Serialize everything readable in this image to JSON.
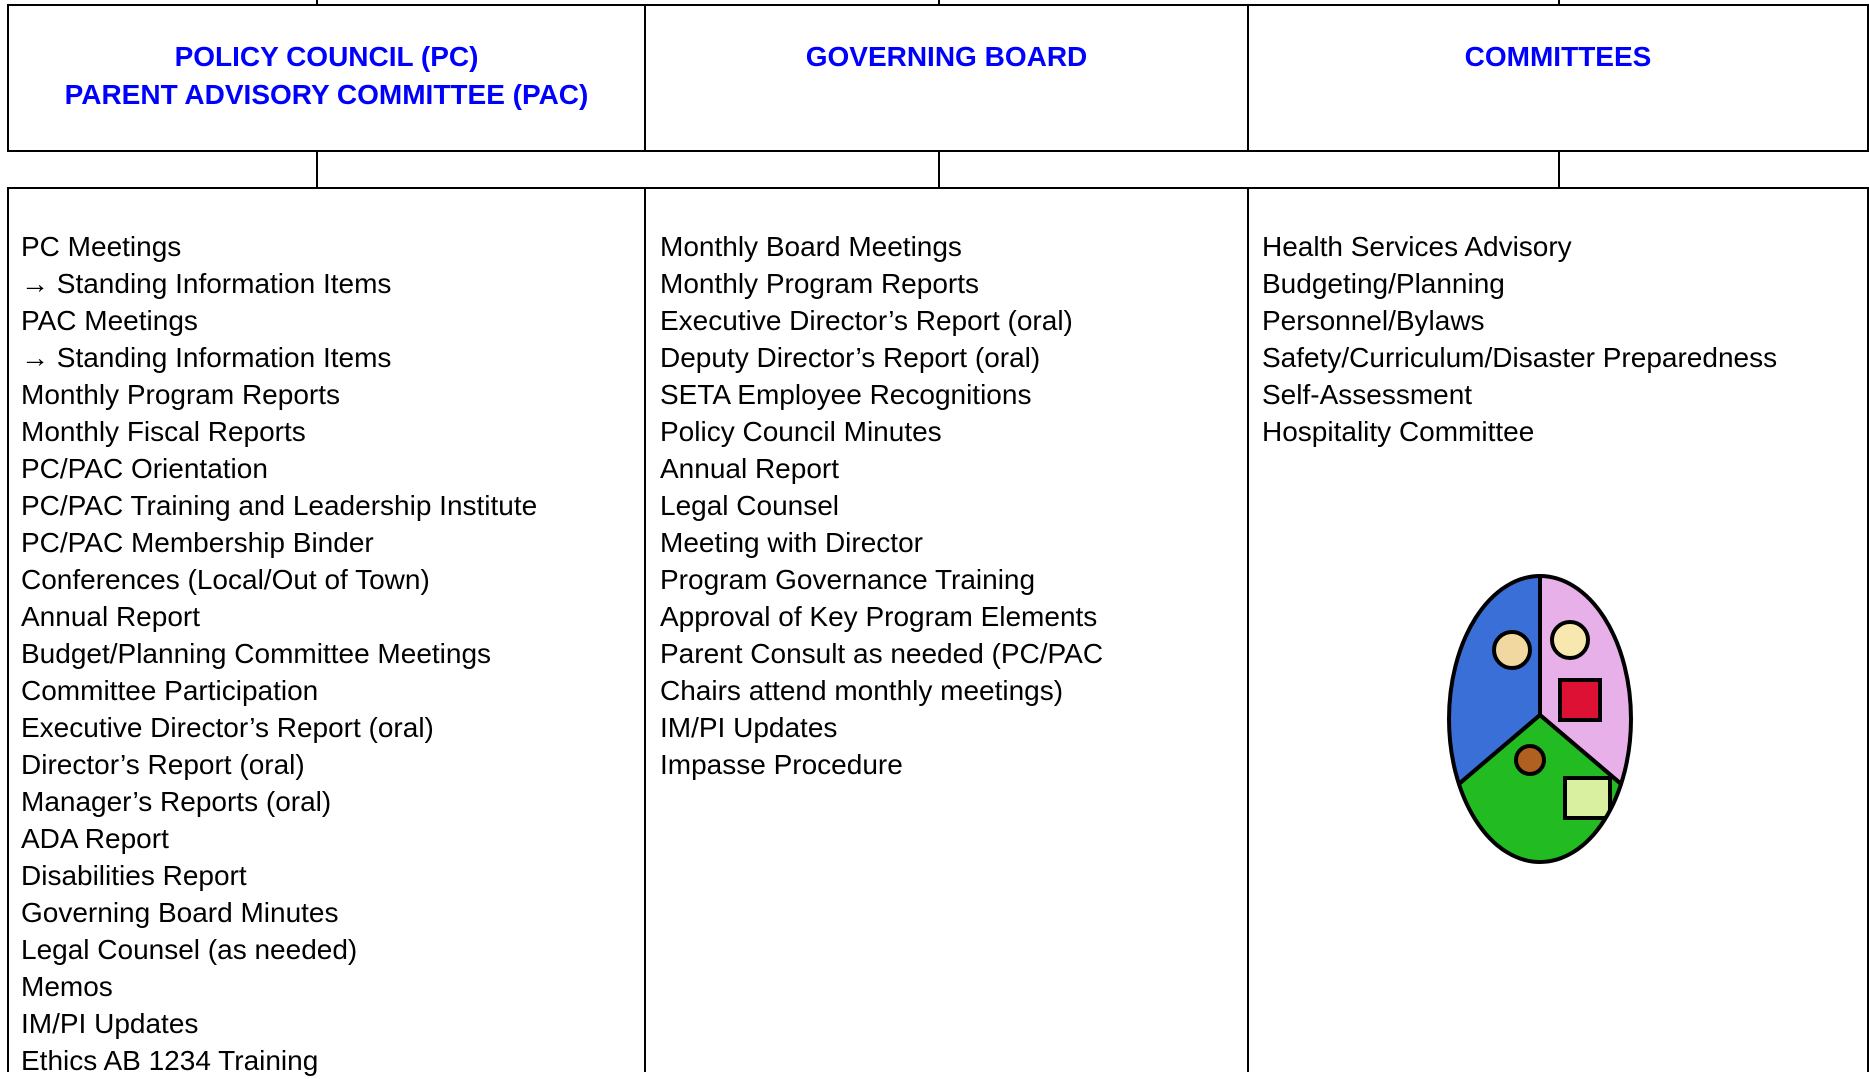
{
  "columns": [
    {
      "header": [
        "POLICY COUNCIL (PC)",
        "PARENT ADVISORY COMMITTEE (PAC)"
      ],
      "items": [
        "PC Meetings",
        "→ Standing Information Items",
        "PAC Meetings",
        "→ Standing Information Items",
        "Monthly Program Reports",
        "Monthly Fiscal Reports",
        "PC/PAC Orientation",
        "PC/PAC Training and Leadership Institute",
        "PC/PAC Membership Binder",
        "Conferences (Local/Out of Town)",
        "Annual Report",
        "Budget/Planning Committee Meetings",
        "Committee Participation",
        "Executive Director’s Report (oral)",
        "Director’s Report (oral)",
        "Manager’s Reports (oral)",
        "ADA Report",
        "Disabilities Report",
        "Governing Board Minutes",
        "Legal Counsel (as needed)",
        "Memos",
        "IM/PI Updates",
        "Ethics AB 1234 Training"
      ]
    },
    {
      "header": [
        "GOVERNING BOARD"
      ],
      "items": [
        "Monthly Board Meetings",
        "Monthly Program Reports",
        "Executive Director’s Report (oral)",
        "Deputy Director’s Report (oral)",
        "SETA Employee Recognitions",
        "Policy Council Minutes",
        "Annual Report",
        "Legal Counsel",
        "Meeting with Director",
        "Program Governance Training",
        "Approval of Key Program Elements",
        "Parent Consult as needed (PC/PAC",
        "Chairs attend monthly meetings)",
        "IM/PI Updates",
        "Impasse Procedure"
      ]
    },
    {
      "header": [
        "COMMITTEES"
      ],
      "items": [
        "Health Services Advisory",
        "Budgeting/Planning",
        "Personnel/Bylaws",
        "Safety/Curriculum/Disaster Preparedness",
        "Self-Assessment",
        "Hospitality Committee"
      ]
    }
  ]
}
